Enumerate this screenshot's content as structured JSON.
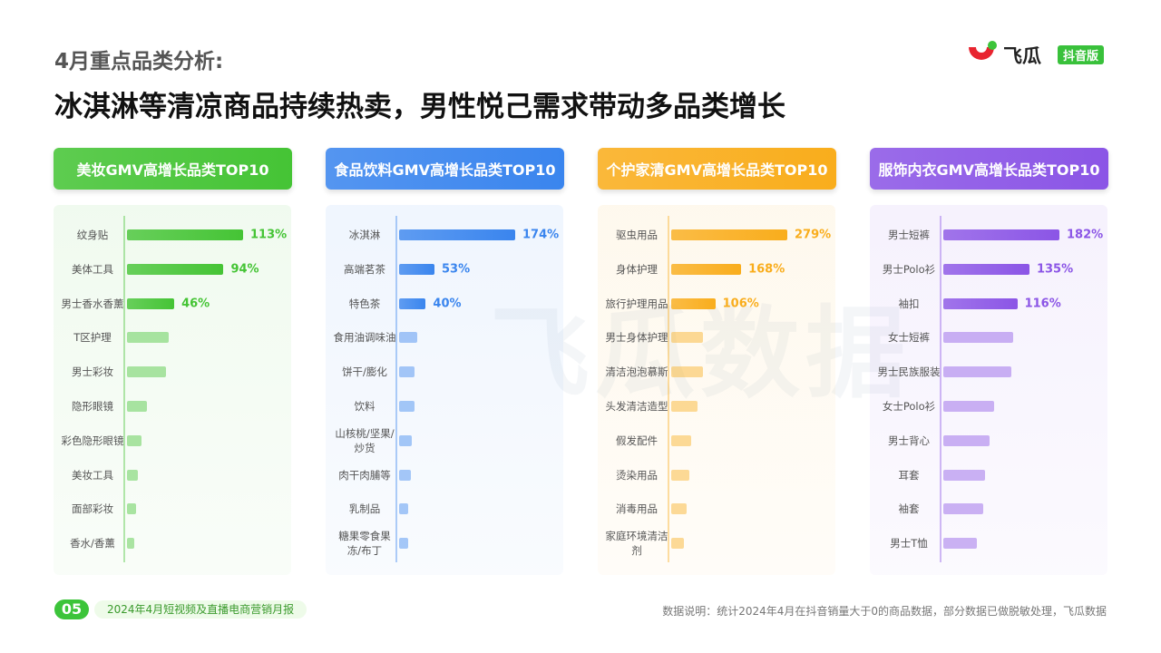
{
  "header": {
    "subtitle": "4月重点品类分析:",
    "title": "冰淇淋等清凉商品持续热卖，男性悦己需求带动多品类增长"
  },
  "logo": {
    "name": "飞瓜",
    "badge": "抖音版"
  },
  "watermark": "飞瓜数据",
  "chart_data": [
    {
      "type": "bar",
      "title": "美妆GMV高增长品类TOP10",
      "color": "#45c435",
      "categories": [
        "纹身贴",
        "美体工具",
        "男士香水香薰",
        "T区护理",
        "男士彩妆",
        "隐形眼镜",
        "彩色隐形眼镜",
        "美妆工具",
        "面部彩妆",
        "香水/香薰"
      ],
      "values": [
        113,
        94,
        46,
        41,
        38,
        19,
        14,
        11,
        9,
        7
      ],
      "value_labels": [
        "113%",
        "94%",
        "46%",
        null,
        null,
        null,
        null,
        null,
        null,
        null
      ]
    },
    {
      "type": "bar",
      "title": "食品饮料GMV高增长品类TOP10",
      "color": "#3a85ee",
      "categories": [
        "冰淇淋",
        "高端茗茶",
        "特色茶",
        "食用油调味油",
        "饼干/膨化",
        "饮料",
        "山核桃/坚果/炒货",
        "肉干肉脯等",
        "乳制品",
        "糖果零食果冻/布丁"
      ],
      "values": [
        174,
        53,
        40,
        27,
        23,
        23,
        19,
        17,
        14,
        14
      ],
      "value_labels": [
        "174%",
        "53%",
        "40%",
        null,
        null,
        null,
        null,
        null,
        null,
        null
      ]
    },
    {
      "type": "bar",
      "title": "个护家清GMV高增长品类TOP10",
      "color": "#f9ad1c",
      "categories": [
        "驱虫用品",
        "身体护理",
        "旅行护理用品",
        "男士身体护理",
        "清洁泡泡慕斯",
        "头发清洁造型",
        "假发配件",
        "烫染用品",
        "消毒用品",
        "家庭环境清洁剂"
      ],
      "values": [
        279,
        168,
        106,
        76,
        76,
        63,
        48,
        44,
        37,
        30
      ],
      "value_labels": [
        "279%",
        "168%",
        "106%",
        null,
        null,
        null,
        null,
        null,
        null,
        null
      ]
    },
    {
      "type": "bar",
      "title": "服饰内衣GMV高增长品类TOP10",
      "color": "#8b55e6",
      "categories": [
        "男士短裤",
        "男士Polo衫",
        "袖扣",
        "女士短裤",
        "男士民族服装",
        "女士Polo衫",
        "男士背心",
        "耳套",
        "袖套",
        "男士T恤"
      ],
      "values": [
        182,
        135,
        116,
        110,
        106,
        80,
        73,
        66,
        62,
        53
      ],
      "value_labels": [
        "182%",
        "135%",
        "116%",
        null,
        null,
        null,
        null,
        null,
        null,
        null
      ]
    }
  ],
  "footer": {
    "page": "05",
    "report": "2024年4月短视频及直播电商营销月报",
    "note": "数据说明：统计2024年4月在抖音销量大于0的商品数据，部分数据已做脱敏处理，飞瓜数据"
  }
}
